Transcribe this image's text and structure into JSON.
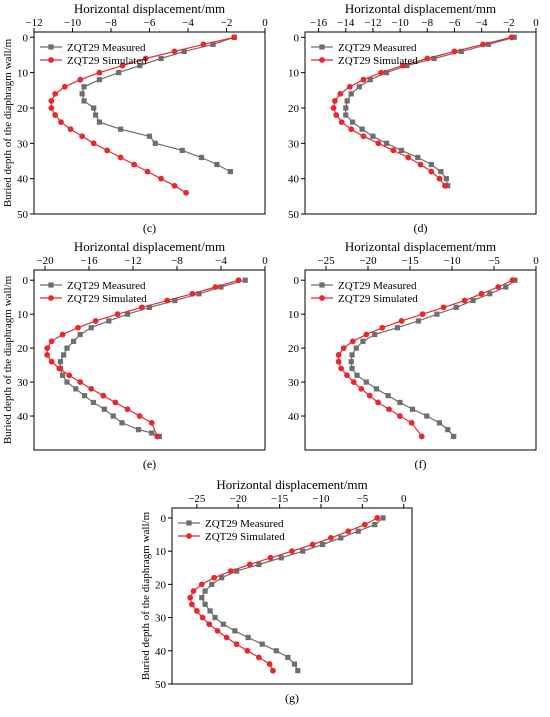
{
  "colors": {
    "measured": "#6e6e6e",
    "simulated": "#e8282d",
    "axis": "#000000"
  },
  "chart_data": [
    {
      "panel_label": "(c)",
      "type": "line",
      "xlabel": "Horizontal displacement/mm",
      "ylabel": "Buried depth of the diaphragm wall/m",
      "xlim": [
        -12,
        0
      ],
      "ylim": [
        -1.5,
        50
      ],
      "xticks": [
        -12,
        -10,
        -8,
        -6,
        -4,
        -2,
        0
      ],
      "xtick_labels": [
        "−12",
        "−10",
        "−8",
        "−6",
        "−4",
        "−2",
        "0"
      ],
      "yticks": [
        0,
        10,
        20,
        30,
        40,
        50
      ],
      "ytick_labels": [
        "0",
        "10",
        "20",
        "30",
        "40",
        "50"
      ],
      "y_inverted": true,
      "x_axis_position": "top",
      "legend_position": "top-left",
      "series": [
        {
          "name": "ZQT29 Measured",
          "marker": "square",
          "x": [
            -1.6,
            -2.7,
            -4.2,
            -5.4,
            -6.5,
            -7.6,
            -8.6,
            -9.4,
            -9.5,
            -9.4,
            -8.9,
            -8.8,
            -8.6,
            -7.5,
            -6.0,
            -5.7,
            -4.3,
            -3.3,
            -2.5,
            -1.8
          ],
          "y": [
            0,
            2,
            4,
            6,
            8,
            10,
            12,
            14,
            16,
            18,
            20,
            22,
            24,
            26,
            28,
            30,
            32,
            34,
            36,
            38
          ]
        },
        {
          "name": "ZQT29 Simulated",
          "marker": "circle",
          "x": [
            -1.6,
            -3.2,
            -4.7,
            -6.2,
            -7.4,
            -8.6,
            -9.6,
            -10.4,
            -10.9,
            -11.1,
            -11.1,
            -10.9,
            -10.6,
            -10.1,
            -9.5,
            -8.9,
            -8.2,
            -7.5,
            -6.8,
            -6.1,
            -5.4,
            -4.7,
            -4.1
          ],
          "y": [
            0,
            2,
            4,
            6,
            8,
            10,
            12,
            14,
            16,
            18,
            20,
            22,
            24,
            26,
            28,
            30,
            32,
            34,
            36,
            38,
            40,
            42,
            44
          ]
        }
      ]
    },
    {
      "panel_label": "(d)",
      "type": "line",
      "xlabel": "Horizontal displacement/mm",
      "ylabel": "",
      "xlim": [
        -17,
        0
      ],
      "ylim": [
        -1.5,
        50
      ],
      "xticks": [
        -16,
        -14,
        -12,
        -10,
        -8,
        -6,
        -4,
        -2,
        0
      ],
      "xtick_labels": [
        "−16",
        "−14",
        "−12",
        "−10",
        "−8",
        "−6",
        "−4",
        "−2",
        "0"
      ],
      "yticks": [
        0,
        10,
        20,
        30,
        40,
        50
      ],
      "ytick_labels": [
        "0",
        "10",
        "20",
        "30",
        "40",
        "50"
      ],
      "y_inverted": true,
      "x_axis_position": "top",
      "legend_position": "top-left",
      "series": [
        {
          "name": "ZQT29 Measured",
          "marker": "square",
          "x": [
            -1.6,
            -3.5,
            -5.5,
            -7.5,
            -9.5,
            -11.0,
            -12.2,
            -13.0,
            -13.6,
            -13.9,
            -14.0,
            -14.0,
            -13.5,
            -12.8,
            -12.0,
            -11.0,
            -9.9,
            -8.7,
            -7.7,
            -7.0,
            -6.6,
            -6.5
          ],
          "y": [
            0,
            2,
            4,
            6,
            8,
            10,
            12,
            14,
            16,
            18,
            20,
            22,
            24,
            26,
            28,
            30,
            32,
            34,
            36,
            38,
            40,
            42
          ]
        },
        {
          "name": "ZQT29 Simulated",
          "marker": "circle",
          "x": [
            -1.8,
            -3.9,
            -6.0,
            -8.0,
            -9.8,
            -11.4,
            -12.7,
            -13.7,
            -14.4,
            -14.8,
            -14.9,
            -14.7,
            -14.3,
            -13.6,
            -12.7,
            -11.6,
            -10.5,
            -9.4,
            -8.5,
            -7.7,
            -7.1,
            -6.7
          ],
          "y": [
            0,
            2,
            4,
            6,
            8,
            10,
            12,
            14,
            16,
            18,
            20,
            22,
            24,
            26,
            28,
            30,
            32,
            34,
            36,
            38,
            40,
            42
          ]
        }
      ]
    },
    {
      "panel_label": "(e)",
      "type": "line",
      "xlabel": "Horizontal displacement/mm",
      "ylabel": "Buried depth of the diaphragm wall/m",
      "xlim": [
        -21,
        0
      ],
      "ylim": [
        -3,
        50
      ],
      "xticks": [
        -20,
        -16,
        -12,
        -8,
        -4,
        0
      ],
      "xtick_labels": [
        "−20",
        "−16",
        "−12",
        "−8",
        "−4",
        "0"
      ],
      "yticks": [
        0,
        10,
        20,
        30,
        40
      ],
      "ytick_labels": [
        "0",
        "10",
        "20",
        "30",
        "40"
      ],
      "y_inverted": true,
      "x_axis_position": "top",
      "legend_position": "top-left",
      "series": [
        {
          "name": "ZQT29 Measured",
          "marker": "square",
          "x": [
            -1.8,
            -4.0,
            -6.0,
            -8.2,
            -10.5,
            -12.5,
            -14.2,
            -15.8,
            -16.8,
            -17.4,
            -18.0,
            -18.3,
            -18.6,
            -18.6,
            -18.4,
            -18.0,
            -17.2,
            -16.4,
            -15.6,
            -14.6,
            -13.8,
            -13.0,
            -11.5,
            -10.3,
            -9.6
          ],
          "y": [
            0,
            2,
            4,
            6,
            8,
            10,
            12,
            14,
            16,
            18,
            20,
            22,
            24,
            26,
            28,
            30,
            32,
            34,
            36,
            38,
            40,
            42,
            44,
            45,
            46
          ]
        },
        {
          "name": "ZQT29 Simulated",
          "marker": "circle",
          "x": [
            -2.4,
            -4.5,
            -6.6,
            -8.9,
            -11.2,
            -13.4,
            -15.4,
            -17.0,
            -18.4,
            -19.4,
            -19.8,
            -19.8,
            -19.4,
            -18.7,
            -17.8,
            -16.8,
            -15.8,
            -14.7,
            -13.6,
            -12.5,
            -11.4,
            -10.3,
            -9.8
          ],
          "y": [
            0,
            2,
            4,
            6,
            8,
            10,
            12,
            14,
            16,
            18,
            20,
            22,
            24,
            26,
            28,
            30,
            32,
            34,
            36,
            38,
            40,
            42,
            46
          ]
        }
      ]
    },
    {
      "panel_label": "(f)",
      "type": "line",
      "xlabel": "Horizontal displacement/mm",
      "ylabel": "",
      "xlim": [
        -27.5,
        0
      ],
      "ylim": [
        -3,
        50
      ],
      "xticks": [
        -25,
        -20,
        -15,
        -10,
        -5,
        0
      ],
      "xtick_labels": [
        "−25",
        "−20",
        "−15",
        "−10",
        "−5",
        "0"
      ],
      "yticks": [
        0,
        10,
        20,
        30,
        40
      ],
      "ytick_labels": [
        "0",
        "10",
        "20",
        "30",
        "40"
      ],
      "y_inverted": true,
      "x_axis_position": "top",
      "legend_position": "top-left",
      "series": [
        {
          "name": "ZQT29 Measured",
          "marker": "square",
          "x": [
            -2.5,
            -3.6,
            -5.5,
            -7.5,
            -9.5,
            -11.8,
            -14.0,
            -16.5,
            -19.2,
            -20.6,
            -21.4,
            -21.9,
            -22.0,
            -21.9,
            -21.3,
            -20.2,
            -19.0,
            -17.6,
            -16.2,
            -14.7,
            -13.0,
            -11.5,
            -10.5,
            -9.8
          ],
          "y": [
            0,
            2,
            4,
            6,
            8,
            10,
            12,
            14,
            16,
            18,
            20,
            22,
            24,
            26,
            28,
            30,
            32,
            34,
            36,
            38,
            40,
            42,
            44,
            46
          ]
        },
        {
          "name": "ZQT29 Simulated",
          "marker": "circle",
          "x": [
            -2.8,
            -4.5,
            -6.5,
            -8.5,
            -11.0,
            -13.5,
            -16.0,
            -18.3,
            -20.2,
            -21.8,
            -22.9,
            -23.5,
            -23.5,
            -23.2,
            -22.5,
            -21.7,
            -20.8,
            -19.8,
            -18.8,
            -17.5,
            -16.2,
            -14.8,
            -13.6
          ],
          "y": [
            0,
            2,
            4,
            6,
            8,
            10,
            12,
            14,
            16,
            18,
            20,
            22,
            24,
            26,
            28,
            30,
            32,
            34,
            36,
            38,
            40,
            42,
            46
          ]
        }
      ]
    },
    {
      "panel_label": "(g)",
      "type": "line",
      "xlabel": "Horizontal displacement/mm",
      "ylabel": "Buried depth of the diaphragm wall/m",
      "xlim": [
        -28,
        1
      ],
      "ylim": [
        -3,
        50
      ],
      "xticks": [
        -25,
        -20,
        -15,
        -10,
        -5,
        0
      ],
      "xtick_labels": [
        "−25",
        "−20",
        "−15",
        "−10",
        "−5",
        "0"
      ],
      "yticks": [
        0,
        10,
        20,
        30,
        40,
        50
      ],
      "ytick_labels": [
        "0",
        "10",
        "20",
        "30",
        "40",
        "50"
      ],
      "y_inverted": true,
      "x_axis_position": "top",
      "legend_position": "top-left",
      "series": [
        {
          "name": "ZQT29 Measured",
          "marker": "square",
          "x": [
            -2.5,
            -3.5,
            -5.5,
            -7.6,
            -9.8,
            -12.2,
            -14.8,
            -17.5,
            -20.2,
            -22.0,
            -23.2,
            -24.0,
            -24.4,
            -24.0,
            -23.4,
            -22.8,
            -21.8,
            -20.4,
            -18.8,
            -17.1,
            -15.4,
            -14.0,
            -13.2,
            -12.8
          ],
          "y": [
            0,
            2,
            4,
            6,
            8,
            10,
            12,
            14,
            16,
            18,
            20,
            22,
            24,
            26,
            28,
            30,
            32,
            34,
            36,
            38,
            40,
            42,
            44,
            46
          ]
        },
        {
          "name": "ZQT29 Simulated",
          "marker": "circle",
          "x": [
            -3.2,
            -4.7,
            -6.7,
            -8.8,
            -11.0,
            -13.5,
            -16.1,
            -18.6,
            -20.9,
            -22.9,
            -24.4,
            -25.4,
            -25.8,
            -25.6,
            -25.0,
            -24.3,
            -23.5,
            -22.5,
            -21.4,
            -20.2,
            -18.9,
            -17.5,
            -16.2,
            -15.8
          ],
          "y": [
            0,
            2,
            4,
            6,
            8,
            10,
            12,
            14,
            16,
            18,
            20,
            22,
            24,
            26,
            28,
            30,
            32,
            34,
            36,
            38,
            40,
            42,
            44,
            46
          ]
        }
      ]
    }
  ]
}
